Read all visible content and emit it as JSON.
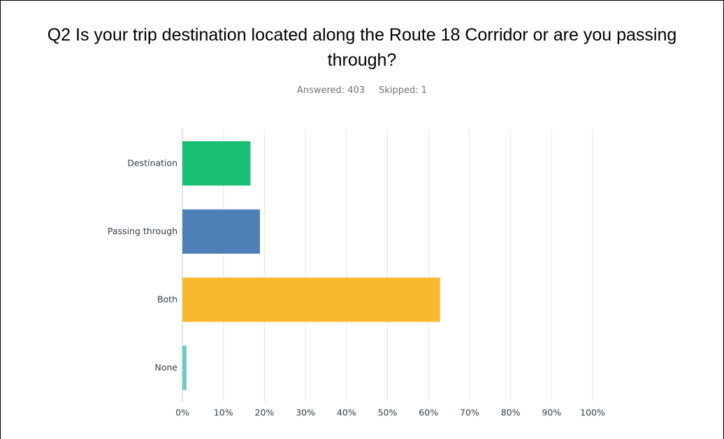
{
  "chart_data": {
    "type": "bar",
    "orientation": "horizontal",
    "title": "Q2 Is your trip destination located along the Route 18 Corridor or are you passing through?",
    "subtitle": [
      "Answered: 403",
      "Skipped: 1"
    ],
    "categories": [
      "Destination",
      "Passing through",
      "Both",
      "None"
    ],
    "values": [
      16.6,
      18.9,
      62.8,
      1.0
    ],
    "colors": [
      "#19bf73",
      "#4f7fb7",
      "#f9b92f",
      "#6dcbca"
    ],
    "xlim": [
      0,
      100
    ],
    "xticks": [
      {
        "value": 0,
        "label": "0%"
      },
      {
        "value": 10,
        "label": "10%"
      },
      {
        "value": 20,
        "label": "20%"
      },
      {
        "value": 30,
        "label": "30%"
      },
      {
        "value": 40,
        "label": "40%"
      },
      {
        "value": 50,
        "label": "50%"
      },
      {
        "value": 60,
        "label": "60%"
      },
      {
        "value": 70,
        "label": "70%"
      },
      {
        "value": 80,
        "label": "80%"
      },
      {
        "value": 90,
        "label": "90%"
      },
      {
        "value": 100,
        "label": "100%"
      }
    ],
    "grid": true
  }
}
